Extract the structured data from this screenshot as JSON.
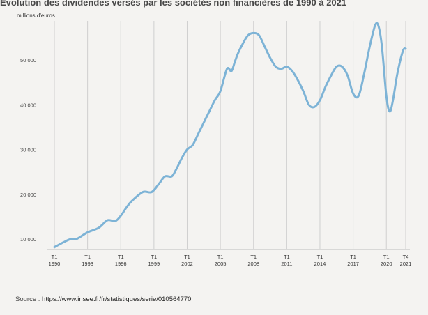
{
  "header": {
    "title": "Évolution des dividendes versés par les sociétés non financières de 1990 à 2021"
  },
  "source": {
    "label": "Source :",
    "url": "https://www.insee.fr/fr/statistiques/serie/010564770"
  },
  "colors": {
    "line": "#7db3d6",
    "grid": "#cfcfcf"
  },
  "chart_data": {
    "type": "line",
    "title": "",
    "ylabel": "millions d'euros",
    "xlabel": "",
    "ylim": [
      8000,
      58000
    ],
    "xlim": [
      1990.0,
      2021.75
    ],
    "grid": "vertical lines at x ticks",
    "y_ticks": [
      {
        "value": 10000,
        "label": "10 000"
      },
      {
        "value": 20000,
        "label": "20 000"
      },
      {
        "value": 30000,
        "label": "30 000"
      },
      {
        "value": 40000,
        "label": "40 000"
      },
      {
        "value": 50000,
        "label": "50 000"
      }
    ],
    "x_ticks": [
      {
        "x": 1990.0,
        "line1": "T1",
        "line2": "1990"
      },
      {
        "x": 1993.0,
        "line1": "T1",
        "line2": "1993"
      },
      {
        "x": 1996.0,
        "line1": "T1",
        "line2": "1996"
      },
      {
        "x": 1999.0,
        "line1": "T1",
        "line2": "1999"
      },
      {
        "x": 2002.0,
        "line1": "T1",
        "line2": "2002"
      },
      {
        "x": 2005.0,
        "line1": "T1",
        "line2": "2005"
      },
      {
        "x": 2008.0,
        "line1": "T1",
        "line2": "2008"
      },
      {
        "x": 2011.0,
        "line1": "T1",
        "line2": "2011"
      },
      {
        "x": 2014.0,
        "line1": "T1",
        "line2": "2014"
      },
      {
        "x": 2017.0,
        "line1": "T1",
        "line2": "2017"
      },
      {
        "x": 2020.0,
        "line1": "T1",
        "line2": "2020"
      },
      {
        "x": 2021.75,
        "line1": "T4",
        "line2": "2021"
      }
    ],
    "series": [
      {
        "name": "",
        "x": [
          1990.0,
          1991.0,
          1991.5,
          1992.0,
          1993.0,
          1994.0,
          1994.8,
          1995.5,
          1996.0,
          1996.5,
          1997.0,
          1998.0,
          1998.8,
          1999.5,
          2000.0,
          2000.6,
          2001.0,
          2001.5,
          2002.0,
          2002.5,
          2003.0,
          2003.5,
          2004.0,
          2004.5,
          2005.0,
          2005.6,
          2006.0,
          2006.3,
          2006.6,
          2007.0,
          2007.5,
          2008.0,
          2008.5,
          2009.0,
          2009.5,
          2010.0,
          2010.5,
          2011.0,
          2011.5,
          2012.0,
          2012.5,
          2013.0,
          2013.5,
          2014.0,
          2014.5,
          2015.0,
          2015.5,
          2016.0,
          2016.5,
          2017.0,
          2017.5,
          2018.0,
          2018.5,
          2019.0,
          2019.3,
          2019.6,
          2020.0,
          2020.3,
          2020.6,
          2021.0,
          2021.5,
          2021.75
        ],
        "values": [
          8200,
          9500,
          10000,
          10000,
          11500,
          12500,
          14200,
          14000,
          15200,
          17000,
          18500,
          20500,
          20500,
          22500,
          24000,
          24000,
          25500,
          28000,
          30000,
          31000,
          33500,
          36000,
          38500,
          41000,
          43000,
          48000,
          47500,
          49500,
          51500,
          53500,
          55500,
          56000,
          55500,
          53000,
          50500,
          48500,
          48000,
          48500,
          47500,
          45500,
          43000,
          40000,
          39500,
          41000,
          44000,
          46500,
          48500,
          48500,
          46500,
          42500,
          42000,
          47000,
          53000,
          57800,
          57500,
          53000,
          42000,
          38500,
          41000,
          47000,
          52000,
          52500
        ]
      }
    ]
  }
}
